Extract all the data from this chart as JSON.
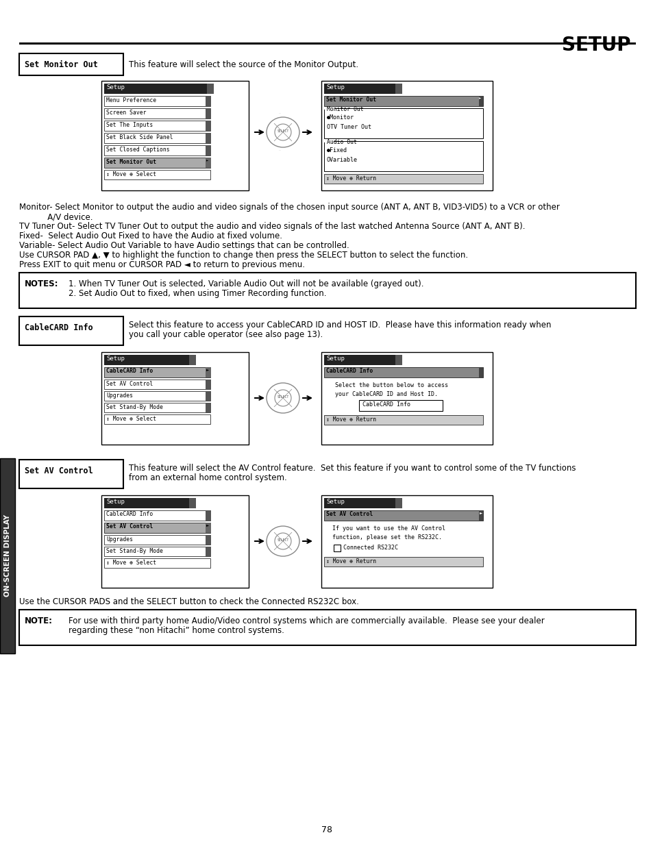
{
  "title": "SETUP",
  "page_number": "78",
  "bg_color": "#ffffff",
  "section1_label": "Set Monitor Out",
  "section1_desc": "This feature will select the source of the Monitor Output.",
  "section1_body": [
    "Monitor- Select Monitor to output the audio and video signals of the chosen input source (ANT A, ANT B, VID3-VID5) to a VCR or other",
    "           A/V device.",
    "TV Tuner Out- Select TV Tuner Out to output the audio and video signals of the last watched Antenna Source (ANT A, ANT B).",
    "Fixed-  Select Audio Out Fixed to have the Audio at fixed volume.",
    "Variable- Select Audio Out Variable to have Audio settings that can be controlled.",
    "Use CURSOR PAD ▲, ▼ to highlight the function to change then press the SELECT button to select the function.",
    "Press EXIT to quit menu or CURSOR PAD ◄ to return to previous menu."
  ],
  "notes_label": "NOTES:",
  "notes": [
    "1. When TV Tuner Out is selected, Variable Audio Out will not be available (grayed out).",
    "2. Set Audio Out to fixed, when using Timer Recording function."
  ],
  "section2_label": "CableCARD Info",
  "section2_desc": "Select this feature to access your CableCARD ID and HOST ID.  Please have this information ready when\nyou call your cable operator (see also page 13).",
  "section3_label": "Set AV Control",
  "section3_desc": "This feature will select the AV Control feature.  Set this feature if you want to control some of the TV functions\nfrom an external home control system.",
  "section3_body": "Use the CURSOR PADS and the SELECT button to check the Connected RS232C box.",
  "note2_label": "NOTE:",
  "note2_body": "For use with third party home Audio/Video control systems which are commercially available.  Please see your dealer\nregarding these “non Hitachi” home control systems."
}
